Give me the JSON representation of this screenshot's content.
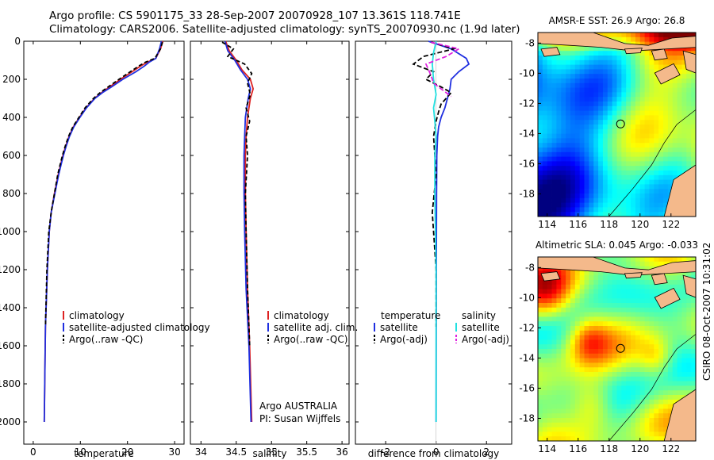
{
  "header": {
    "title_line1": "Argo profile: CS 5901175_33 28-Sep-2007 20070928_107 13.361S 118.741E",
    "title_line2": "Climatology: CARS2006. Satellite-adjusted climatology: synTS_20070930.nc (1.9d later)"
  },
  "credit": "CSIRO 08-Oct-2007 10:31:02",
  "colors": {
    "climatology": "#dd2222",
    "satellite": "#1f2fe0",
    "argo": "#000000",
    "salinity_satellite": "#22e0e0",
    "salinity_argo": "#e020e0",
    "land": "#f4b98b"
  },
  "chart_data": [
    {
      "type": "line",
      "id": "temperature",
      "xlabel": "temperature",
      "ylabel": "",
      "xlim": [
        -2,
        32
      ],
      "ylim": [
        2050,
        0
      ],
      "xticks": [
        0,
        10,
        20,
        30
      ],
      "yticks": [
        0,
        200,
        400,
        600,
        800,
        1000,
        1200,
        1400,
        1600,
        1800,
        2000
      ],
      "legend": [
        "climatology",
        "satellite-adjusted climatology",
        "Argo(..raw -QC)"
      ],
      "series": [
        {
          "name": "climatology",
          "color": "#dd2222",
          "dash": "",
          "x": [
            27.5,
            27.0,
            26.0,
            24.2,
            22.8,
            21.0,
            18.5,
            16.2,
            14.5,
            13.0,
            11.2,
            9.8,
            8.5,
            7.6,
            6.9,
            6.3,
            5.8,
            5.3,
            4.5,
            3.8,
            3.4,
            3.0,
            2.6,
            2.35
          ],
          "y": [
            0,
            40,
            90,
            110,
            130,
            160,
            200,
            240,
            270,
            300,
            350,
            400,
            450,
            500,
            550,
            600,
            650,
            700,
            800,
            900,
            1000,
            1200,
            1500,
            2000
          ]
        },
        {
          "name": "satellite",
          "color": "#1f2fe0",
          "dash": "",
          "x": [
            27.2,
            26.8,
            26.0,
            24.6,
            23.6,
            21.8,
            19.0,
            16.6,
            14.7,
            13.1,
            11.3,
            9.9,
            8.6,
            7.7,
            7.0,
            6.4,
            5.9,
            5.4,
            4.6,
            3.8,
            3.4,
            3.0,
            2.6,
            2.35
          ],
          "y": [
            0,
            40,
            90,
            110,
            130,
            160,
            200,
            240,
            270,
            300,
            350,
            400,
            450,
            500,
            550,
            600,
            650,
            700,
            800,
            900,
            1000,
            1200,
            1500,
            2000
          ]
        },
        {
          "name": "Argo",
          "color": "#000000",
          "dash": "5,3",
          "x": [
            27.4,
            27.0,
            25.8,
            23.8,
            22.4,
            20.6,
            18.2,
            15.9,
            14.2,
            12.8,
            11.0,
            9.7,
            8.4,
            7.5,
            6.8,
            6.2,
            5.7,
            5.2,
            4.5,
            3.8,
            3.3,
            2.9,
            2.6
          ],
          "y": [
            5,
            40,
            90,
            110,
            130,
            160,
            200,
            240,
            270,
            300,
            350,
            400,
            450,
            500,
            550,
            600,
            650,
            700,
            800,
            900,
            1000,
            1200,
            1500
          ]
        }
      ]
    },
    {
      "type": "line",
      "id": "salinity",
      "xlabel": "salinity",
      "ylabel": "",
      "xlim": [
        33.85,
        36.1
      ],
      "ylim": [
        2050,
        0
      ],
      "xticks": [
        34,
        34.5,
        35,
        35.5,
        36
      ],
      "xtick_labels": [
        "34",
        "34.5",
        "35",
        "35.5",
        "36"
      ],
      "legend": [
        "climatology",
        "satellite adj. clim.",
        "Argo(..raw -QC)"
      ],
      "annotation": [
        "Argo AUSTRALIA",
        "PI: Susan Wijffels"
      ],
      "series": [
        {
          "name": "climatology",
          "color": "#dd2222",
          "dash": "",
          "x": [
            34.35,
            34.4,
            34.5,
            34.58,
            34.7,
            34.74,
            34.7,
            34.68,
            34.66,
            34.64,
            34.63,
            34.63,
            34.64,
            34.66,
            34.69,
            34.72
          ],
          "y": [
            0,
            50,
            100,
            150,
            200,
            250,
            300,
            350,
            400,
            500,
            600,
            800,
            1000,
            1300,
            1600,
            2000
          ]
        },
        {
          "name": "satellite",
          "color": "#1f2fe0",
          "dash": "",
          "x": [
            34.34,
            34.38,
            34.48,
            34.56,
            34.66,
            34.7,
            34.67,
            34.65,
            34.63,
            34.62,
            34.61,
            34.61,
            34.62,
            34.64,
            34.68,
            34.71
          ],
          "y": [
            0,
            50,
            100,
            150,
            200,
            250,
            300,
            350,
            400,
            500,
            600,
            800,
            1000,
            1300,
            1600,
            2000
          ]
        },
        {
          "name": "Argo",
          "color": "#000000",
          "dash": "5,3",
          "x": [
            34.3,
            34.46,
            34.38,
            34.62,
            34.72,
            34.66,
            34.7,
            34.64,
            34.69,
            34.64,
            34.66,
            34.63,
            34.64,
            34.66,
            34.69
          ],
          "y": [
            5,
            40,
            80,
            120,
            170,
            220,
            280,
            350,
            420,
            500,
            600,
            800,
            1000,
            1300,
            1600
          ]
        }
      ]
    },
    {
      "type": "line",
      "id": "difference",
      "xlabel": "difference from climatology",
      "ylabel": "",
      "xlim": [
        -3.2,
        3.0
      ],
      "ylim": [
        2050,
        0
      ],
      "xticks": [
        -2,
        0,
        2
      ],
      "legend_left_title": "temperature",
      "legend_left": [
        "satellite",
        "Argo(-adj)"
      ],
      "legend_right_title": "salinity",
      "legend_right": [
        "satellite",
        "Argo(-adj)"
      ],
      "series": [
        {
          "name": "temperature satellite",
          "color": "#1f2fe0",
          "dash": "",
          "x": [
            -0.3,
            0.6,
            1.2,
            1.3,
            0.9,
            0.6,
            0.55,
            0.45,
            0.35,
            0.2,
            0.1,
            0.06,
            0.03,
            0.02,
            0.01,
            0.0
          ],
          "y": [
            0,
            40,
            90,
            120,
            160,
            200,
            250,
            300,
            350,
            400,
            450,
            500,
            600,
            800,
            1200,
            2000
          ]
        },
        {
          "name": "temperature Argo",
          "color": "#000000",
          "dash": "6,3",
          "x": [
            -0.2,
            0.7,
            -0.5,
            -0.9,
            -0.1,
            -0.4,
            0.2,
            0.6,
            0.4,
            0.2,
            0.1,
            0.0,
            -0.1,
            0.0,
            -0.15,
            0.0,
            0.0
          ],
          "y": [
            5,
            40,
            80,
            120,
            160,
            200,
            240,
            270,
            300,
            330,
            370,
            420,
            500,
            700,
            900,
            1200,
            1500
          ]
        },
        {
          "name": "salinity satellite",
          "color": "#22e0e0",
          "dash": "",
          "x": [
            0.0,
            -0.1,
            -0.15,
            -0.1,
            0.0,
            -0.1,
            -0.05,
            0.0,
            -0.05,
            -0.05,
            0.0,
            0.0
          ],
          "y": [
            0,
            60,
            120,
            200,
            280,
            350,
            420,
            500,
            600,
            800,
            1200,
            2000
          ]
        },
        {
          "name": "salinity Argo",
          "color": "#e020e0",
          "dash": "6,3",
          "x": [
            -0.2,
            0.9,
            0.4,
            -0.4,
            -0.2,
            -0.1,
            0.3,
            0.6
          ],
          "y": [
            5,
            40,
            80,
            120,
            180,
            220,
            260,
            290
          ]
        }
      ]
    },
    {
      "type": "heatmap",
      "id": "sst_map",
      "title": "AMSR-E SST: 26.9 Argo: 26.8",
      "xlim": [
        113.4,
        123.6
      ],
      "ylim": [
        -19.5,
        -7.3
      ],
      "xticks": [
        114,
        116,
        118,
        120,
        122
      ],
      "yticks": [
        -8,
        -10,
        -12,
        -14,
        -16,
        -18
      ],
      "marker": {
        "lon": 118.741,
        "lat": -13.361
      }
    },
    {
      "type": "heatmap",
      "id": "sla_map",
      "title": "Altimetric SLA: 0.045 Argo: -0.033",
      "xlim": [
        113.4,
        123.6
      ],
      "ylim": [
        -19.5,
        -7.3
      ],
      "xticks": [
        114,
        116,
        118,
        120,
        122
      ],
      "yticks": [
        -8,
        -10,
        -12,
        -14,
        -16,
        -18
      ],
      "marker": {
        "lon": 118.741,
        "lat": -13.361
      }
    }
  ]
}
